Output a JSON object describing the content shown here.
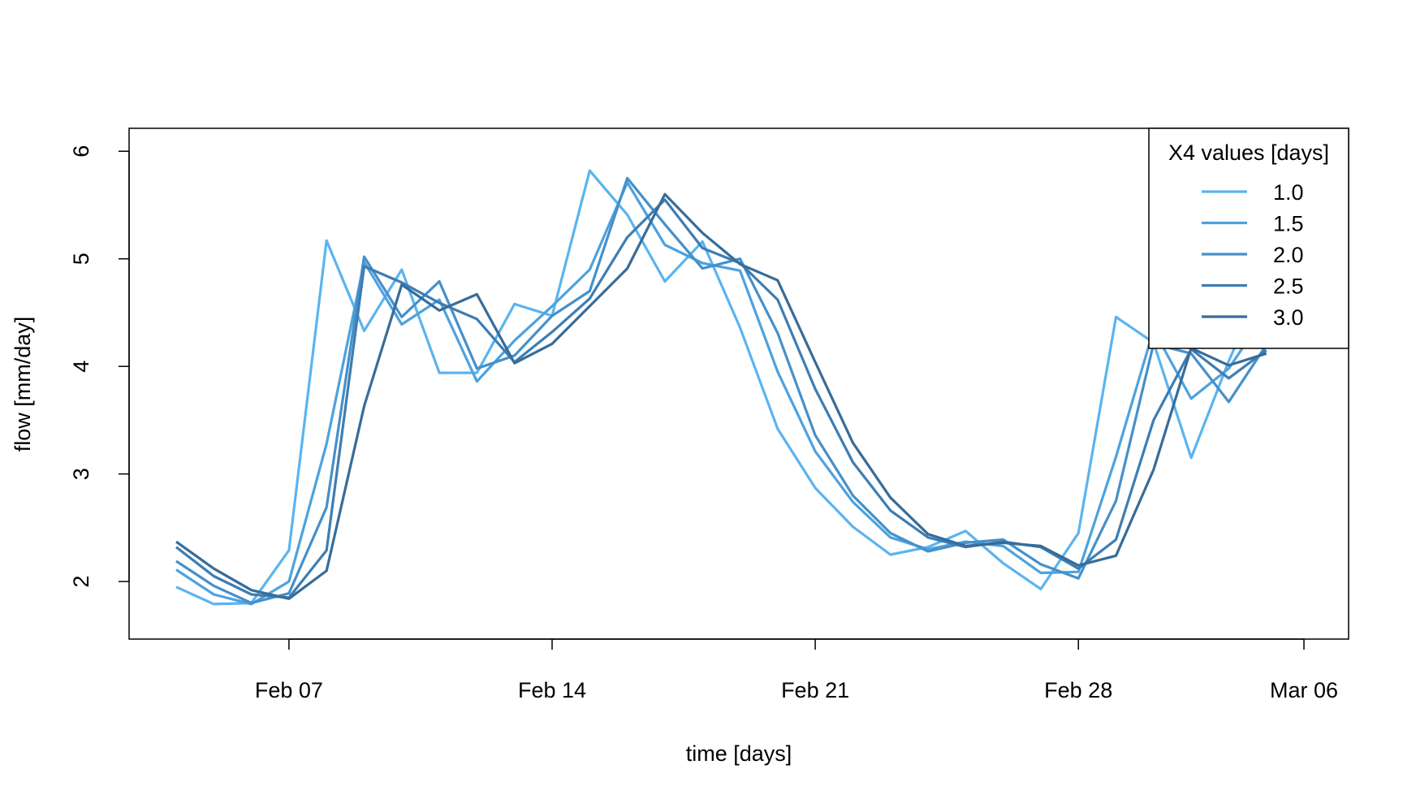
{
  "chart_data": {
    "type": "line",
    "title": "",
    "xlabel": "time [days]",
    "ylabel": "flow [mm/day]",
    "x": [
      "Feb 04",
      "Feb 05",
      "Feb 06",
      "Feb 07",
      "Feb 08",
      "Feb 09",
      "Feb 10",
      "Feb 11",
      "Feb 12",
      "Feb 13",
      "Feb 14",
      "Feb 15",
      "Feb 16",
      "Feb 17",
      "Feb 18",
      "Feb 19",
      "Feb 20",
      "Feb 21",
      "Feb 22",
      "Feb 23",
      "Feb 24",
      "Feb 25",
      "Feb 26",
      "Feb 27",
      "Feb 28",
      "Mar 01",
      "Mar 02",
      "Mar 03",
      "Mar 04",
      "Mar 05"
    ],
    "x_ticks": [
      "Feb 07",
      "Feb 14",
      "Feb 21",
      "Feb 28",
      "Mar 06"
    ],
    "y_ticks": [
      "2",
      "3",
      "4",
      "5",
      "6"
    ],
    "ylim": [
      1.85,
      6.1
    ],
    "grid": false,
    "legend": {
      "title": "X4 values [days]",
      "position": "top-right"
    },
    "series": [
      {
        "name": "1.0",
        "color": "#5AB4F0",
        "values": [
          1.95,
          1.79,
          1.8,
          2.29,
          5.17,
          4.33,
          4.9,
          3.94,
          3.94,
          4.58,
          4.47,
          5.82,
          5.41,
          4.79,
          5.16,
          4.36,
          3.42,
          2.87,
          2.51,
          2.25,
          2.32,
          2.47,
          2.17,
          1.93,
          2.45,
          4.46,
          4.22,
          3.15,
          4.05,
          4.85
        ]
      },
      {
        "name": "1.5",
        "color": "#4DA2DE",
        "values": [
          2.11,
          1.88,
          1.79,
          2.0,
          3.28,
          4.97,
          4.39,
          4.62,
          3.86,
          4.24,
          4.56,
          4.9,
          5.71,
          5.13,
          4.96,
          4.89,
          3.95,
          3.21,
          2.74,
          2.41,
          2.3,
          2.37,
          2.33,
          2.08,
          2.09,
          3.16,
          4.34,
          3.7,
          3.98,
          4.5
        ]
      },
      {
        "name": "2.0",
        "color": "#4590CA",
        "values": [
          2.19,
          1.96,
          1.8,
          1.89,
          2.69,
          5.02,
          4.46,
          4.79,
          3.98,
          4.1,
          4.47,
          4.7,
          5.75,
          5.32,
          4.91,
          5.0,
          4.31,
          3.36,
          2.8,
          2.45,
          2.28,
          2.36,
          2.39,
          2.16,
          2.03,
          2.75,
          4.21,
          4.12,
          3.67,
          4.2
        ]
      },
      {
        "name": "2.5",
        "color": "#3E7DB2",
        "values": [
          2.32,
          2.05,
          1.88,
          1.85,
          2.29,
          4.93,
          4.78,
          4.59,
          4.44,
          4.04,
          4.32,
          4.63,
          5.2,
          5.55,
          5.1,
          4.96,
          4.62,
          3.79,
          3.11,
          2.66,
          2.41,
          2.32,
          2.37,
          2.32,
          2.12,
          2.39,
          3.5,
          4.16,
          3.89,
          4.15
        ]
      },
      {
        "name": "3.0",
        "color": "#376C99",
        "values": [
          2.37,
          2.12,
          1.92,
          1.84,
          2.1,
          3.63,
          4.76,
          4.52,
          4.67,
          4.03,
          4.21,
          4.56,
          4.91,
          5.6,
          5.24,
          4.95,
          4.8,
          4.04,
          3.29,
          2.78,
          2.44,
          2.33,
          2.36,
          2.33,
          2.15,
          2.24,
          3.04,
          4.17,
          4.01,
          4.12
        ]
      }
    ]
  }
}
